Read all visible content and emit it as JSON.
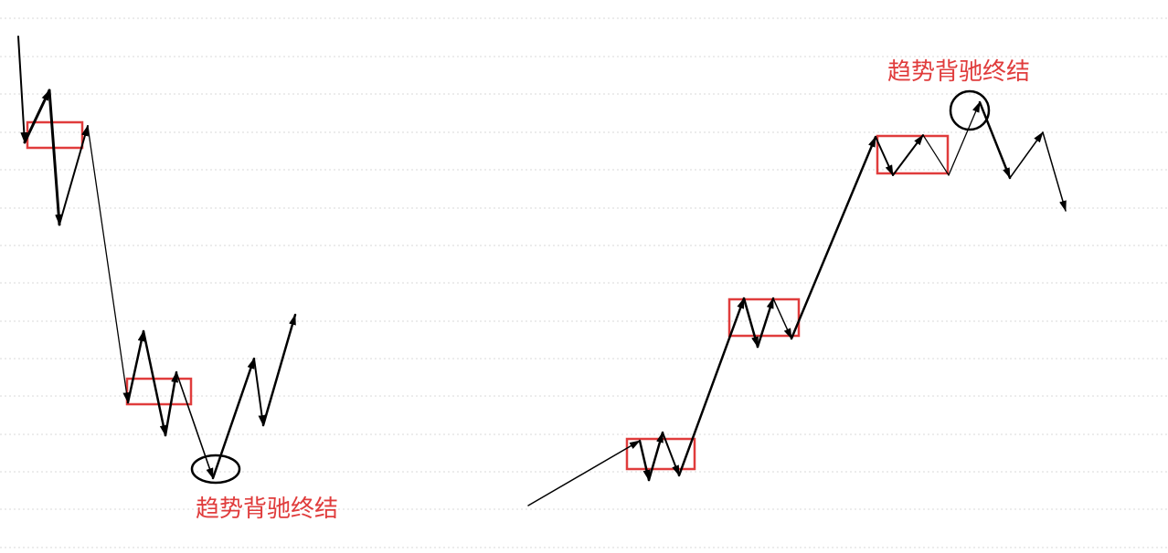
{
  "annotations": {
    "left": "趋势背驰终结",
    "right": "趋势背驰终结"
  },
  "colors": {
    "background": "#ffffff",
    "line": "#000000",
    "box": "#e03c3c",
    "label": "#e03c3c",
    "gridline": "#d9d9d9"
  }
}
